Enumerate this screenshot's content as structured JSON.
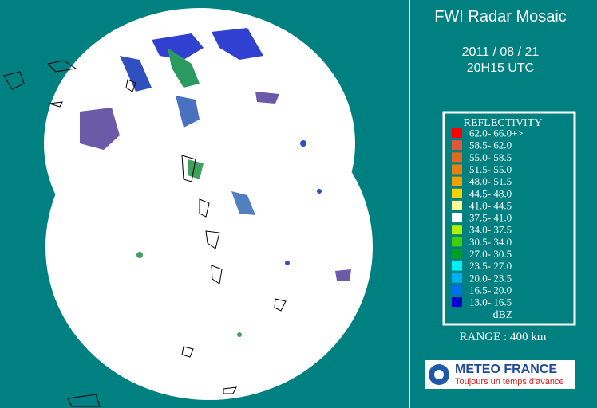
{
  "title": "FWI Radar Mosaic",
  "date": "2011 / 08 / 21",
  "time": "20H15 UTC",
  "legend": {
    "title": "REFLECTIVITY",
    "entries": [
      {
        "label": "62.0- 66.0+>",
        "color": "#ff0000"
      },
      {
        "label": "58.5- 62.0",
        "color": "#e05838"
      },
      {
        "label": "55.0- 58.5",
        "color": "#e06a20"
      },
      {
        "label": "51.5- 55.0",
        "color": "#e88010"
      },
      {
        "label": "48.0- 51.5",
        "color": "#f0a000"
      },
      {
        "label": "44.5- 48.0",
        "color": "#f8d000"
      },
      {
        "label": "41.0- 44.5",
        "color": "#ffff90"
      },
      {
        "label": "37.5- 41.0",
        "color": "#ffffff"
      },
      {
        "label": "34.0- 37.5",
        "color": "#b0f000"
      },
      {
        "label": "30.5- 34.0",
        "color": "#40d000"
      },
      {
        "label": "27.0- 30.5",
        "color": "#00a020"
      },
      {
        "label": "23.5- 27.0",
        "color": "#00f0f0"
      },
      {
        "label": "20.0- 23.5",
        "color": "#00b0f0"
      },
      {
        "label": "16.5- 20.0",
        "color": "#0070f0"
      },
      {
        "label": "13.0- 16.5",
        "color": "#0000d0"
      }
    ],
    "unit": "dBZ"
  },
  "range": "RANGE : 400 km",
  "logo": {
    "name": "METEO FRANCE",
    "slogan": "Toujours un temps d'avance"
  }
}
